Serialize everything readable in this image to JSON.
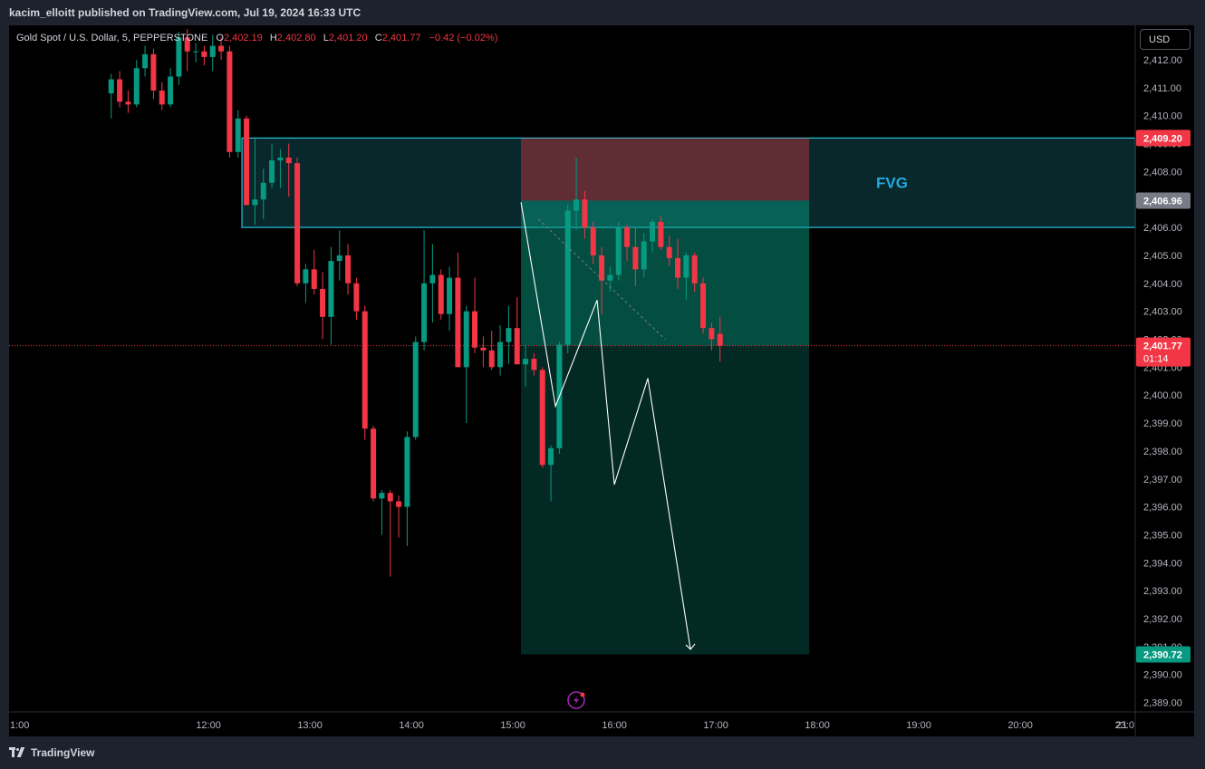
{
  "header": {
    "publisher": "kacim_elloitt published on TradingView.com, Jul 19, 2024 16:33 UTC"
  },
  "legend": {
    "symbol": "Gold Spot / U.S. Dollar, 5, PEPPERSTONE",
    "o_label": "O",
    "o_value": "2,402.19",
    "h_label": "H",
    "h_value": "2,402.80",
    "l_label": "L",
    "l_value": "2,401.20",
    "c_label": "C",
    "c_value": "2,401.77",
    "change": "−0.42 (−0.02%)"
  },
  "toolbar": {
    "currency": "USD"
  },
  "footer": {
    "brand": "TradingView"
  },
  "colors": {
    "up": "#089981",
    "down": "#f23645",
    "zone_fvg": "#26c6da",
    "stop_zone": "#f23645",
    "target_zone": "#089981",
    "fvg_text": "#26a9e0"
  },
  "chart_data": {
    "type": "candlestick",
    "symbol": "XAUUSD",
    "interval": "5",
    "x_axis": {
      "tick_labels": [
        "1:00",
        "12:00",
        "13:00",
        "14:00",
        "15:00",
        "16:00",
        "17:00",
        "18:00",
        "19:00",
        "20:00",
        "21",
        "23:0"
      ],
      "tick_hours": [
        11.0,
        12.0,
        13.0,
        14.0,
        15.0,
        16.0,
        17.0,
        18.0,
        19.0,
        20.0,
        21.0,
        23.0
      ]
    },
    "y_axis": {
      "range": [
        2388.3,
        2413.0
      ],
      "tick_values": [
        2412,
        2411,
        2410,
        2409,
        2408,
        2407,
        2406,
        2405,
        2404,
        2403,
        2402,
        2401,
        2400,
        2399,
        2398,
        2397,
        2396,
        2395,
        2394,
        2393,
        2392,
        2391,
        2390,
        2389
      ],
      "tick_labels": [
        "2,412.00",
        "2,411.00",
        "2,410.00",
        "2,409.00",
        "2,408.00",
        "2,407.00",
        "2,406.00",
        "2,405.00",
        "2,404.00",
        "2,403.00",
        "2,402.00",
        "2,401.00",
        "2,400.00",
        "2,399.00",
        "2,398.00",
        "2,397.00",
        "2,396.00",
        "2,395.00",
        "2,394.00",
        "2,393.00",
        "2,392.00",
        "2,391.00",
        "2,390.00",
        "2,389.00"
      ]
    },
    "price_labels": [
      {
        "value": 2409.2,
        "text": "2,409.20",
        "color": "#f23645"
      },
      {
        "value": 2406.96,
        "text": "2,406.96",
        "color": "#787b86"
      },
      {
        "value": 2401.77,
        "text": "2,401.77",
        "subtext": "01:14",
        "color": "#f23645"
      },
      {
        "value": 2390.72,
        "text": "2,390.72",
        "color": "#089981"
      }
    ],
    "last_price": 2401.77,
    "start_hour": 11.0,
    "bar_hours": 0.08333,
    "candles": [
      [
        2410.8,
        2411.5,
        2409.9,
        2411.3
      ],
      [
        2411.3,
        2411.6,
        2410.3,
        2410.5
      ],
      [
        2410.5,
        2410.9,
        2410.1,
        2410.4
      ],
      [
        2410.4,
        2412.0,
        2410.3,
        2411.7
      ],
      [
        2411.7,
        2412.5,
        2411.4,
        2412.2
      ],
      [
        2412.2,
        2412.4,
        2410.6,
        2410.9
      ],
      [
        2410.9,
        2411.2,
        2410.2,
        2410.4
      ],
      [
        2410.4,
        2411.7,
        2410.3,
        2411.4
      ],
      [
        2411.4,
        2413.0,
        2411.1,
        2412.8
      ],
      [
        2412.8,
        2413.1,
        2411.6,
        2412.3
      ],
      [
        2412.3,
        2412.6,
        2411.9,
        2412.3
      ],
      [
        2412.3,
        2412.5,
        2411.8,
        2412.1
      ],
      [
        2412.1,
        2412.9,
        2411.6,
        2412.5
      ],
      [
        2412.5,
        2412.8,
        2412.0,
        2412.3
      ],
      [
        2412.3,
        2412.5,
        2408.5,
        2408.7
      ],
      [
        2408.7,
        2410.2,
        2408.5,
        2409.9
      ],
      [
        2409.9,
        2410.0,
        2406.8,
        2406.8
      ],
      [
        2406.8,
        2409.2,
        2406.1,
        2407.0
      ],
      [
        2407.0,
        2408.1,
        2406.3,
        2407.6
      ],
      [
        2407.6,
        2409.0,
        2407.4,
        2408.4
      ],
      [
        2408.4,
        2408.8,
        2407.4,
        2408.5
      ],
      [
        2408.5,
        2409.0,
        2407.1,
        2408.3
      ],
      [
        2408.3,
        2408.5,
        2403.9,
        2404.0
      ],
      [
        2404.0,
        2404.7,
        2403.3,
        2404.5
      ],
      [
        2404.5,
        2405.2,
        2403.6,
        2403.8
      ],
      [
        2403.8,
        2404.4,
        2402.0,
        2402.8
      ],
      [
        2402.8,
        2405.3,
        2401.8,
        2404.8
      ],
      [
        2404.8,
        2405.9,
        2404.1,
        2405.0
      ],
      [
        2405.0,
        2405.4,
        2403.6,
        2404.0
      ],
      [
        2404.0,
        2404.2,
        2402.7,
        2403.0
      ],
      [
        2403.0,
        2403.2,
        2398.4,
        2398.8
      ],
      [
        2398.8,
        2398.9,
        2396.2,
        2396.3
      ],
      [
        2396.3,
        2396.6,
        2395.0,
        2396.5
      ],
      [
        2396.5,
        2396.6,
        2393.5,
        2396.2
      ],
      [
        2396.2,
        2396.4,
        2394.9,
        2396.0
      ],
      [
        2396.0,
        2398.7,
        2394.6,
        2398.5
      ],
      [
        2398.5,
        2402.1,
        2398.4,
        2401.9
      ],
      [
        2401.9,
        2405.9,
        2401.6,
        2404.0
      ],
      [
        2404.0,
        2405.4,
        2402.6,
        2404.3
      ],
      [
        2404.3,
        2404.5,
        2402.7,
        2402.9
      ],
      [
        2402.9,
        2404.6,
        2402.3,
        2404.2
      ],
      [
        2404.2,
        2405.1,
        2401.0,
        2401.0
      ],
      [
        2401.0,
        2403.2,
        2399.0,
        2403.0
      ],
      [
        2403.0,
        2404.2,
        2401.5,
        2401.7
      ],
      [
        2401.7,
        2402.1,
        2401.0,
        2401.6
      ],
      [
        2401.6,
        2402.3,
        2400.9,
        2401.0
      ],
      [
        2401.0,
        2402.5,
        2400.7,
        2401.9
      ],
      [
        2401.9,
        2403.2,
        2401.1,
        2402.4
      ],
      [
        2402.4,
        2403.5,
        2401.2,
        2401.1
      ],
      [
        2401.1,
        2401.8,
        2400.3,
        2401.3
      ],
      [
        2401.3,
        2401.5,
        2400.7,
        2400.9
      ],
      [
        2400.9,
        2401.0,
        2397.4,
        2397.5
      ],
      [
        2397.5,
        2398.2,
        2396.2,
        2398.1
      ],
      [
        2398.1,
        2401.9,
        2397.9,
        2401.8
      ],
      [
        2401.8,
        2406.8,
        2401.5,
        2406.6
      ],
      [
        2406.6,
        2408.5,
        2405.9,
        2407.0
      ],
      [
        2407.0,
        2407.3,
        2405.6,
        2406.0
      ],
      [
        2406.0,
        2406.2,
        2404.7,
        2405.0
      ],
      [
        2405.0,
        2405.3,
        2402.9,
        2404.1
      ],
      [
        2404.1,
        2404.6,
        2403.7,
        2404.3
      ],
      [
        2404.3,
        2406.2,
        2404.1,
        2406.0
      ],
      [
        2406.0,
        2406.1,
        2404.8,
        2405.3
      ],
      [
        2405.3,
        2406.0,
        2403.9,
        2404.5
      ],
      [
        2404.5,
        2405.8,
        2404.2,
        2405.5
      ],
      [
        2405.5,
        2406.3,
        2405.1,
        2406.2
      ],
      [
        2406.2,
        2406.4,
        2405.2,
        2405.3
      ],
      [
        2405.3,
        2405.7,
        2404.6,
        2404.9
      ],
      [
        2404.9,
        2405.6,
        2403.8,
        2404.2
      ],
      [
        2404.2,
        2405.1,
        2403.4,
        2405.0
      ],
      [
        2405.0,
        2405.1,
        2403.7,
        2404.0
      ],
      [
        2404.0,
        2404.2,
        2402.2,
        2402.4
      ],
      [
        2402.4,
        2402.6,
        2401.6,
        2402.0
      ],
      [
        2402.19,
        2402.8,
        2401.2,
        2401.77
      ]
    ],
    "annotations": {
      "fvg_zone": {
        "label": "FVG",
        "price_top": 2409.2,
        "price_bottom": 2406.0,
        "start_hour": 12.33,
        "end_hour": 24.0
      },
      "short_position": {
        "entry": 2401.77,
        "stop": 2409.2,
        "target": 2390.72,
        "start_hour": 15.08,
        "end_hour": 17.92
      },
      "projection_path": [
        [
          15.08,
          2406.9
        ],
        [
          15.42,
          2399.6
        ],
        [
          15.83,
          2403.4
        ],
        [
          16.0,
          2396.8
        ],
        [
          16.33,
          2400.6
        ],
        [
          16.75,
          2390.9
        ]
      ],
      "projection_dashed": [
        [
          15.25,
          2406.3
        ],
        [
          16.5,
          2402.0
        ]
      ]
    }
  }
}
